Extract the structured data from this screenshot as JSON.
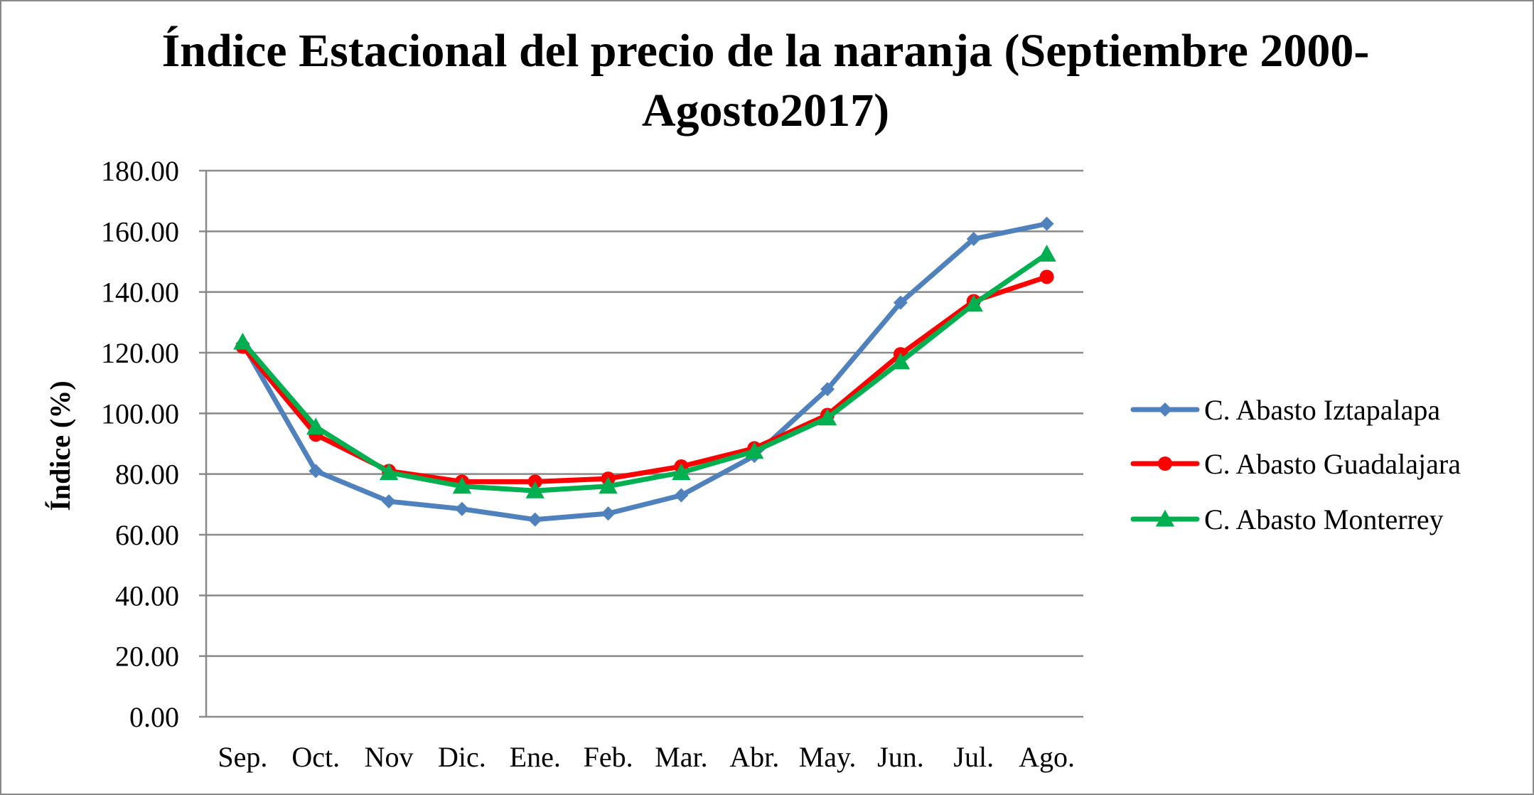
{
  "chart_data": {
    "type": "line",
    "title_line1": "Índice Estacional del precio de la naranja (Septiembre 2000-",
    "title_line2": "Agosto2017)",
    "xlabel": "",
    "ylabel": "Índice (%)",
    "ylim": [
      0,
      180
    ],
    "yticks": [
      "0.00",
      "20.00",
      "40.00",
      "60.00",
      "80.00",
      "100.00",
      "120.00",
      "140.00",
      "160.00",
      "180.00"
    ],
    "categories": [
      "Sep.",
      "Oct.",
      "Nov",
      "Dic.",
      "Ene.",
      "Feb.",
      "Mar.",
      "Abr.",
      "May.",
      "Jun.",
      "Jul.",
      "Ago."
    ],
    "grid": true,
    "legend_position": "right",
    "series": [
      {
        "name": "C. Abasto Iztapalapa",
        "color": "#4F81BD",
        "marker": "diamond",
        "values": [
          123,
          81,
          71,
          68.5,
          65,
          67,
          73,
          86,
          108,
          136.5,
          157.5,
          162.5
        ]
      },
      {
        "name": "C. Abasto Guadalajara",
        "color": "#FF0000",
        "marker": "circle",
        "values": [
          122,
          93,
          81,
          77.5,
          77.5,
          78.5,
          82.5,
          88.5,
          99.5,
          119.5,
          137,
          145
        ]
      },
      {
        "name": "C. Abasto Monterrey",
        "color": "#00B050",
        "marker": "triangle",
        "values": [
          123.5,
          95.5,
          80.5,
          76,
          74.5,
          76,
          80.5,
          87.5,
          98.5,
          117,
          136,
          152.5
        ]
      }
    ]
  }
}
